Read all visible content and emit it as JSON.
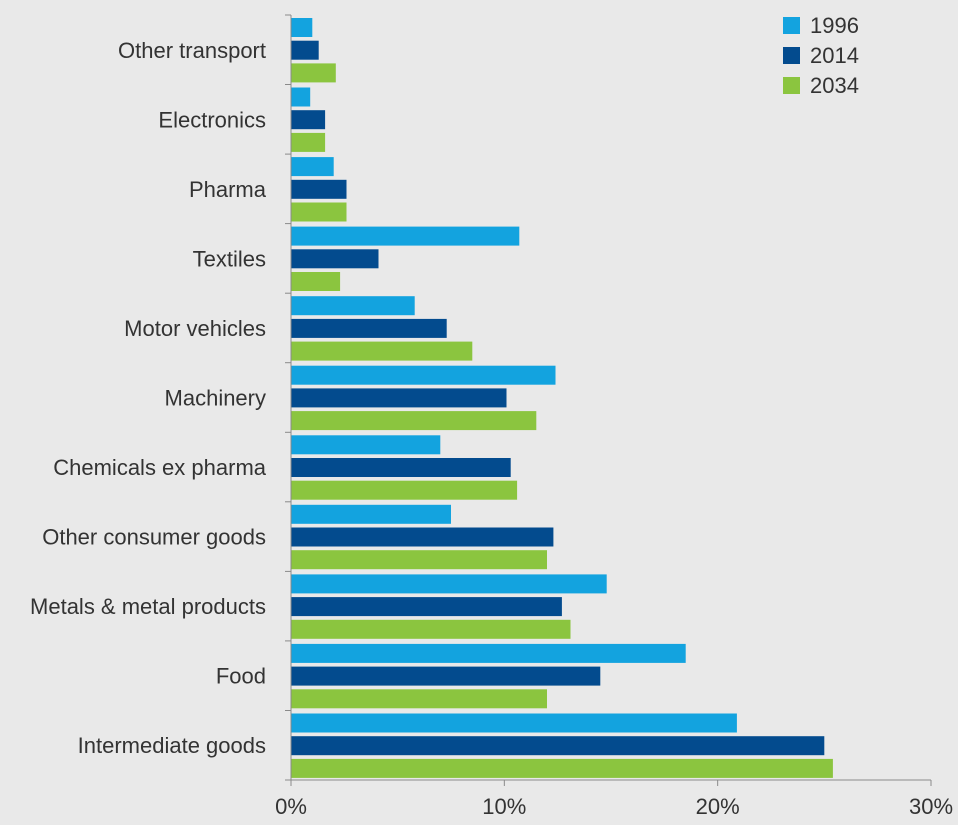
{
  "chart_data": {
    "type": "bar",
    "orientation": "horizontal",
    "categories": [
      "Other transport",
      "Electronics",
      "Pharma",
      "Textiles",
      "Motor vehicles",
      "Machinery",
      "Chemicals ex pharma",
      "Other consumer goods",
      "Metals & metal products",
      "Food",
      "Intermediate goods"
    ],
    "series": [
      {
        "name": "1996",
        "color": "#13a3df",
        "values": [
          1.0,
          0.9,
          2.0,
          10.7,
          5.8,
          12.4,
          7.0,
          7.5,
          14.8,
          18.5,
          20.9
        ]
      },
      {
        "name": "2014",
        "color": "#034b8e",
        "values": [
          1.3,
          1.6,
          2.6,
          4.1,
          7.3,
          10.1,
          10.3,
          12.3,
          12.7,
          14.5,
          25.0
        ]
      },
      {
        "name": "2034",
        "color": "#8bc53f",
        "values": [
          2.1,
          1.6,
          2.6,
          2.3,
          8.5,
          11.5,
          10.6,
          12.0,
          13.1,
          12.0,
          25.4
        ]
      }
    ],
    "x_ticks": [
      "0%",
      "10%",
      "20%",
      "30%"
    ],
    "xlim": [
      0,
      30
    ],
    "legend": "top-right",
    "grid": false
  }
}
